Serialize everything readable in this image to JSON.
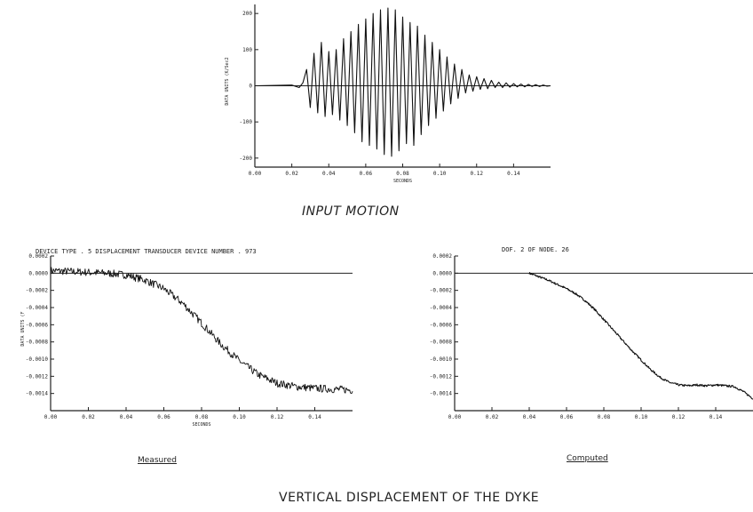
{
  "captions": {
    "input_motion": "INPUT MOTION",
    "measured": "Measured",
    "computed": "Computed",
    "figure_title": "VERTICAL DISPLACEMENT OF THE DYKE"
  },
  "chart_data": [
    {
      "type": "line",
      "id": "input",
      "title": "",
      "xlabel": "SECONDS",
      "ylabel": "DATA UNITS (K/Sec2",
      "xlim": [
        0.0,
        0.16
      ],
      "ylim": [
        -225,
        225
      ],
      "xticks": [
        0.0,
        0.02,
        0.04,
        0.06,
        0.08,
        0.1,
        0.12,
        0.14
      ],
      "xtick_labels": [
        "0.00",
        "0.02",
        "0.04",
        "0.06",
        "0.08",
        "0.10",
        "0.12",
        "0.14"
      ],
      "yticks": [
        200,
        100,
        0,
        -100,
        -200
      ],
      "ytick_labels": [
        "200",
        "100",
        "0",
        "-100",
        "-200"
      ],
      "series": [
        {
          "x": [
            0.0,
            0.02,
            0.024,
            0.026,
            0.028,
            0.03,
            0.032,
            0.034,
            0.036,
            0.038,
            0.04,
            0.042,
            0.044,
            0.046,
            0.048,
            0.05,
            0.052,
            0.054,
            0.056,
            0.058,
            0.06,
            0.062,
            0.064,
            0.066,
            0.068,
            0.07,
            0.072,
            0.074,
            0.076,
            0.078,
            0.08,
            0.082,
            0.084,
            0.086,
            0.088,
            0.09,
            0.092,
            0.094,
            0.096,
            0.098,
            0.1,
            0.102,
            0.104,
            0.106,
            0.108,
            0.11,
            0.112,
            0.114,
            0.116,
            0.118,
            0.12,
            0.122,
            0.124,
            0.126,
            0.128,
            0.13,
            0.132,
            0.134,
            0.136,
            0.138,
            0.14,
            0.142,
            0.144,
            0.146,
            0.148,
            0.15,
            0.152,
            0.154,
            0.156,
            0.158,
            0.16
          ],
          "y": [
            0,
            2,
            -5,
            8,
            45,
            -60,
            90,
            -75,
            120,
            -85,
            95,
            -80,
            100,
            -95,
            130,
            -110,
            150,
            -130,
            170,
            -155,
            185,
            -165,
            200,
            -175,
            210,
            -190,
            215,
            -195,
            210,
            -180,
            190,
            -160,
            175,
            -165,
            165,
            -135,
            140,
            -110,
            120,
            -90,
            100,
            -70,
            80,
            -50,
            60,
            -35,
            45,
            -20,
            30,
            -15,
            25,
            -10,
            20,
            -8,
            15,
            -5,
            10,
            -5,
            8,
            -4,
            6,
            -3,
            5,
            -3,
            4,
            -2,
            3,
            -2,
            2,
            -1,
            0
          ]
        }
      ]
    },
    {
      "type": "line",
      "id": "measured",
      "title": "DEVICE TYPE . 5 DISPLACEMENT TRANSDUCER DEVICE NUMBER . 973",
      "xlabel": "SECONDS",
      "ylabel": "DATA UNITS (F",
      "xlim": [
        0.0,
        0.16
      ],
      "ylim": [
        -0.0016,
        0.0002
      ],
      "xticks": [
        0.0,
        0.02,
        0.04,
        0.06,
        0.08,
        0.1,
        0.12,
        0.14
      ],
      "xtick_labels": [
        "0.00",
        "0.02",
        "0.04",
        "0.06",
        "0.08",
        "0.10",
        "0.12",
        "0.14"
      ],
      "yticks": [
        0.0002,
        0.0,
        -0.0002,
        -0.0004,
        -0.0006,
        -0.0008,
        -0.001,
        -0.0012,
        -0.0014
      ],
      "ytick_labels": [
        "0.0002",
        "0.0000",
        "-0.0002",
        "-0.0004",
        "-0.0006",
        "-0.0008",
        "-0.0010",
        "-0.0012",
        "-0.0014"
      ],
      "series": [
        {
          "x": [
            0.0,
            0.01,
            0.02,
            0.03,
            0.04,
            0.05,
            0.06,
            0.07,
            0.08,
            0.09,
            0.1,
            0.11,
            0.12,
            0.13,
            0.14,
            0.15,
            0.16
          ],
          "y": [
            3e-05,
            2e-05,
            1e-05,
            0.0,
            -2e-05,
            -8e-05,
            -0.00018,
            -0.00035,
            -0.00058,
            -0.00082,
            -0.00102,
            -0.00118,
            -0.00128,
            -0.00132,
            -0.00134,
            -0.00135,
            -0.00136
          ]
        }
      ]
    },
    {
      "type": "line",
      "id": "computed",
      "title": "DOF. 2          OF NODE. 26",
      "xlabel": "",
      "ylabel": "",
      "xlim": [
        0.0,
        0.16
      ],
      "ylim": [
        -0.0016,
        0.0002
      ],
      "xticks": [
        0.0,
        0.02,
        0.04,
        0.06,
        0.08,
        0.1,
        0.12,
        0.14
      ],
      "xtick_labels": [
        "0.00",
        "0.02",
        "0.04",
        "0.06",
        "0.08",
        "0.10",
        "0.12",
        "0.14"
      ],
      "yticks": [
        0.0002,
        0.0,
        -0.0002,
        -0.0004,
        -0.0006,
        -0.0008,
        -0.001,
        -0.0012,
        -0.0014
      ],
      "ytick_labels": [
        "0.0002",
        "0.0000",
        "-0.0002",
        "-0.0004",
        "-0.0006",
        "-0.0008",
        "-0.0010",
        "-0.0012",
        "-0.0014"
      ],
      "series": [
        {
          "x": [
            0.04,
            0.045,
            0.05,
            0.055,
            0.06,
            0.065,
            0.07,
            0.075,
            0.08,
            0.085,
            0.09,
            0.095,
            0.1,
            0.105,
            0.11,
            0.115,
            0.12,
            0.125,
            0.13,
            0.135,
            0.14,
            0.145,
            0.15,
            0.155,
            0.16
          ],
          "y": [
            0.0,
            -4e-05,
            -8e-05,
            -0.00013,
            -0.00018,
            -0.00024,
            -0.00032,
            -0.00042,
            -0.00054,
            -0.00066,
            -0.00078,
            -0.0009,
            -0.00101,
            -0.00112,
            -0.00121,
            -0.00127,
            -0.0013,
            -0.00131,
            -0.0013,
            -0.00131,
            -0.0013,
            -0.00131,
            -0.00132,
            -0.00138,
            -0.00146
          ]
        }
      ]
    }
  ]
}
